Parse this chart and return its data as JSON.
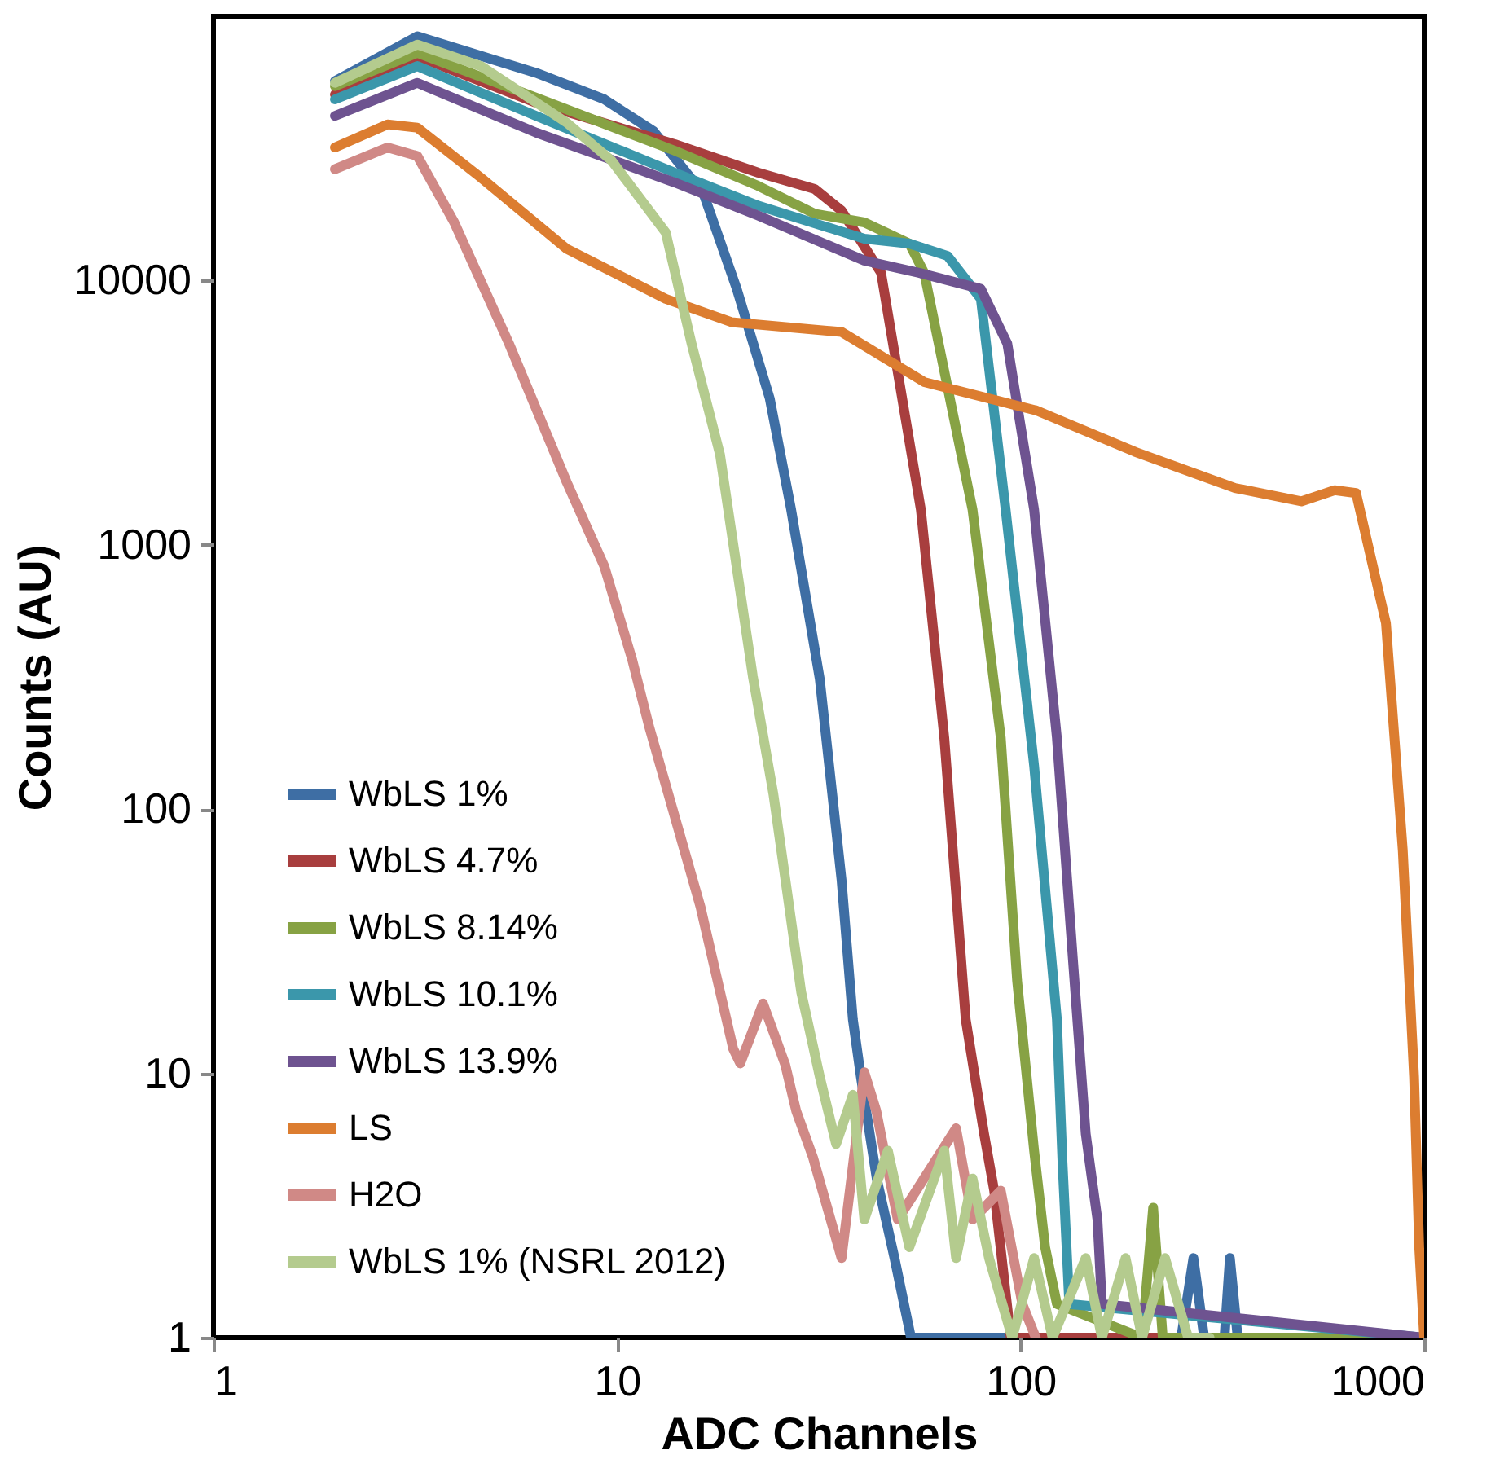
{
  "chart_data": {
    "type": "line",
    "xlabel": "ADC Channels",
    "ylabel": "Counts (AU)",
    "log": "xy",
    "xlim": [
      1,
      1000
    ],
    "xticks": [
      1,
      10,
      100,
      1000
    ],
    "ylim": [
      1,
      100000
    ],
    "yticks": [
      1,
      10,
      100,
      1000,
      10000
    ],
    "grid": false,
    "legend": "bottom left",
    "line_style": "solid",
    "marker": "none",
    "series": [
      {
        "name": "WbLS 1%",
        "color": "#3e6ea4",
        "x": [
          2,
          3.2,
          6.3,
          9.3,
          12.3,
          16.4,
          19.8,
          23.9,
          27,
          31.8,
          36,
          38.4,
          40.2,
          44,
          48.7,
          53.5,
          250,
          268,
          285,
          320,
          330,
          345,
          1000
        ],
        "values": [
          56900,
          84100,
          61100,
          48500,
          36800,
          21200,
          9300,
          3580,
          1360,
          310,
          54,
          16,
          9.7,
          4,
          2,
          1,
          1,
          2,
          1,
          1,
          2,
          1,
          1
        ]
      },
      {
        "name": "WbLS 4.7%",
        "color": "#a83e3e",
        "x": [
          2,
          3.2,
          6.3,
          13.9,
          22.4,
          30.9,
          36,
          45.1,
          56.6,
          64.7,
          73.1,
          81.2,
          86,
          94.5,
          1000
        ],
        "values": [
          50600,
          70500,
          47100,
          32800,
          25600,
          22200,
          18400,
          10700,
          1360,
          186,
          16,
          5.9,
          3.6,
          1,
          1
        ]
      },
      {
        "name": "WbLS 8.14%",
        "color": "#87a244",
        "x": [
          2,
          3.2,
          6.3,
          13.9,
          22.4,
          30.9,
          41,
          53,
          57.7,
          76,
          89.3,
          98,
          108,
          115,
          123,
          200,
          213,
          225,
          1000
        ],
        "values": [
          54400,
          72700,
          49200,
          31000,
          22800,
          17900,
          16600,
          13800,
          10700,
          1360,
          186,
          22.5,
          5.1,
          2.2,
          1.34,
          1,
          3.1,
          1,
          1
        ]
      },
      {
        "name": "WbLS 10.1%",
        "color": "#3b97ab",
        "x": [
          2,
          3.2,
          6.3,
          13.9,
          22.4,
          41,
          53,
          65.9,
          79.7,
          91.8,
          108,
          123,
          127,
          132,
          1000
        ],
        "values": [
          48500,
          64800,
          42000,
          25600,
          19200,
          14400,
          13800,
          12400,
          8530,
          1360,
          146,
          16,
          4.6,
          1.34,
          1
        ]
      },
      {
        "name": "WbLS 13.9%",
        "color": "#6e5390",
        "x": [
          2,
          3.2,
          6.3,
          13.9,
          22.4,
          41,
          56,
          79.7,
          92.7,
          108,
          123,
          135,
          145,
          155,
          159,
          1000
        ],
        "values": [
          42000,
          56000,
          36300,
          23500,
          17600,
          11900,
          10700,
          9300,
          5770,
          1360,
          186,
          26,
          5.9,
          2.8,
          1.34,
          1
        ]
      },
      {
        "name": "LS",
        "color": "#dc7d30",
        "x": [
          2,
          2.7,
          3.2,
          4.6,
          7.5,
          13.2,
          19.2,
          36,
          57.7,
          109,
          192,
          340,
          496,
          600,
          678,
          804,
          885,
          944,
          972,
          1000
        ],
        "values": [
          31900,
          39000,
          37900,
          24500,
          13200,
          8530,
          6960,
          6390,
          4130,
          3230,
          2250,
          1640,
          1460,
          1610,
          1570,
          506,
          70,
          9.7,
          2.2,
          1
        ]
      },
      {
        "name": "H2O",
        "color": "#d08986",
        "x": [
          2,
          2.7,
          3.2,
          3.95,
          5.4,
          7.5,
          9.3,
          10.9,
          12,
          16.1,
          19.4,
          20.2,
          23,
          26.1,
          27.8,
          30.6,
          36,
          41,
          43.9,
          49.6,
          69.2,
          76,
          89.3,
          101,
          109
        ],
        "values": [
          26400,
          31900,
          29600,
          16600,
          5770,
          1730,
          829,
          368,
          206,
          42.6,
          12.4,
          10.9,
          18.4,
          10.8,
          7.2,
          4.8,
          2,
          10.1,
          7.2,
          2.8,
          6.2,
          2.8,
          3.6,
          1.34,
          1
        ]
      },
      {
        "name": "WbLS 1% (NSRL 2012)",
        "color": "#b4cb8e",
        "x": [
          2,
          3.2,
          4.6,
          7.5,
          9.7,
          13.2,
          15.3,
          18,
          21.7,
          24.4,
          28.6,
          31.8,
          34.9,
          38.4,
          41,
          46.9,
          53,
          64.7,
          69.2,
          76,
          83.5,
          95.3,
          108,
          120,
          145,
          159,
          182,
          200,
          228,
          260,
          294
        ],
        "values": [
          56000,
          78200,
          64800,
          39600,
          28400,
          15200,
          5770,
          2190,
          318,
          114,
          20.3,
          9.7,
          5.4,
          8.3,
          2.8,
          5.1,
          2.2,
          5.1,
          2,
          4,
          2,
          1,
          2,
          1,
          2,
          1,
          2,
          1,
          2,
          1,
          1
        ]
      }
    ]
  }
}
